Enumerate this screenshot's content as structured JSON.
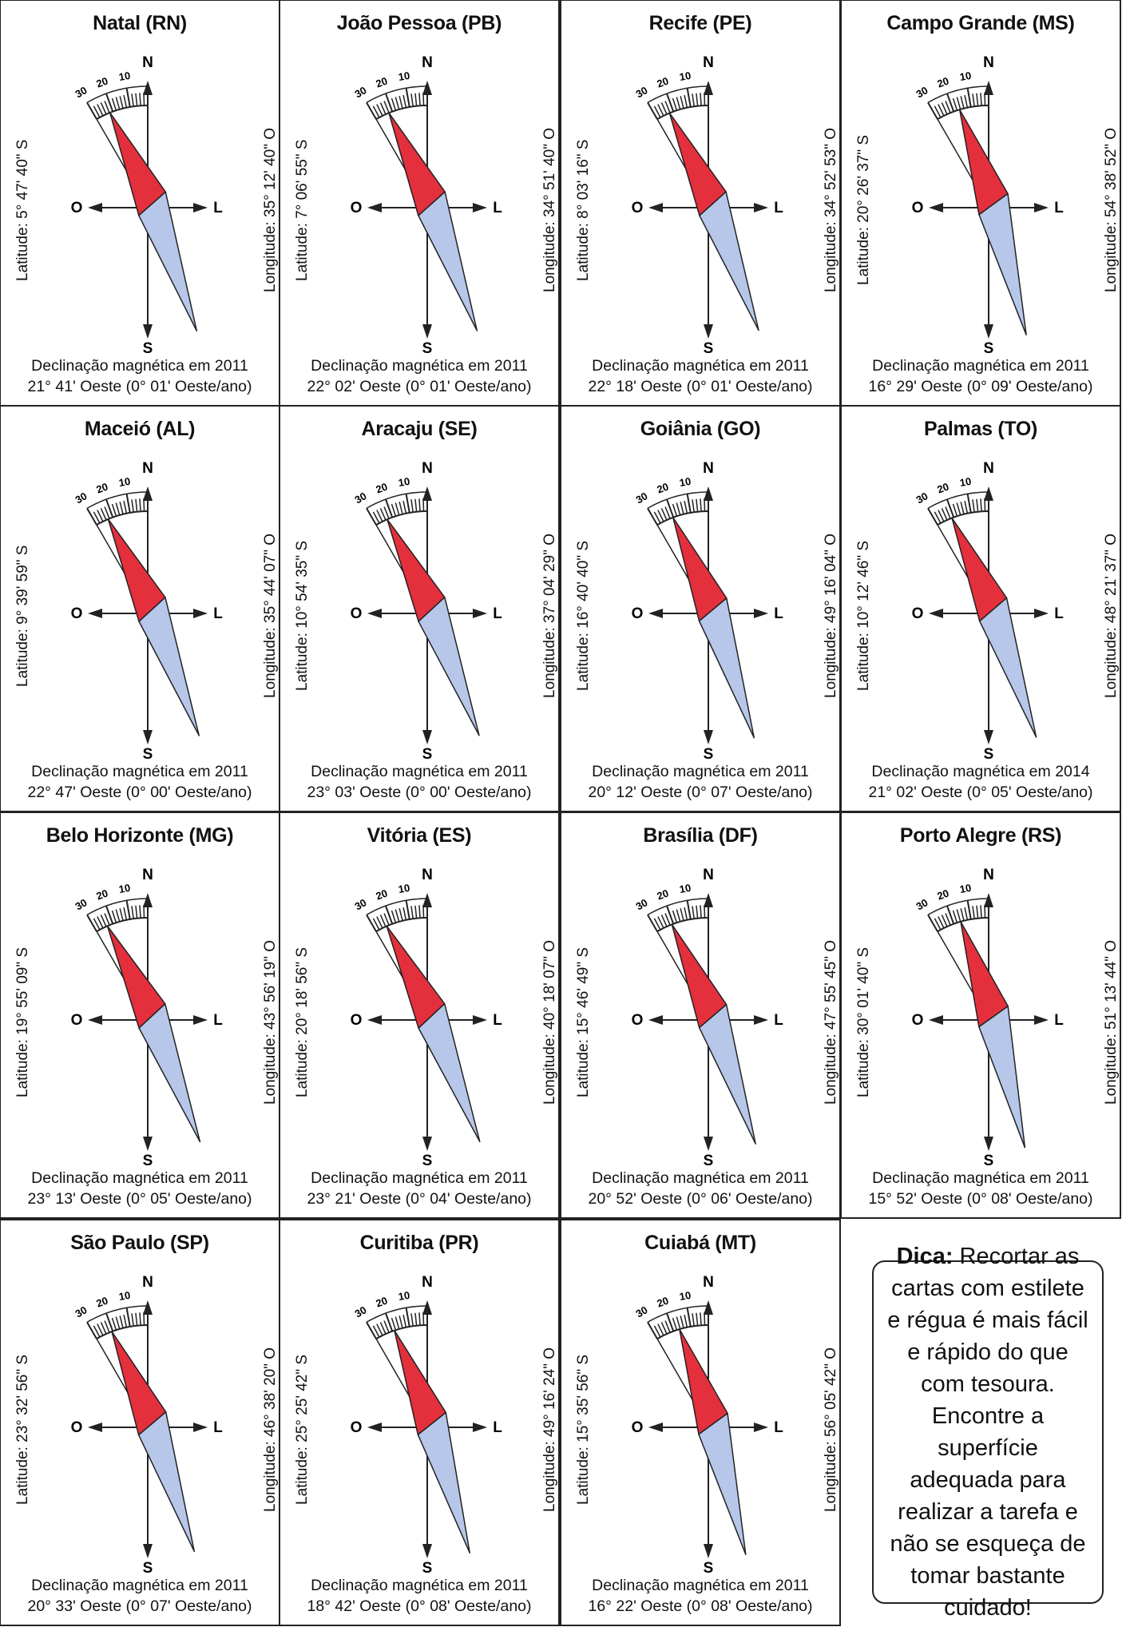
{
  "labels": {
    "north": "N",
    "south": "S",
    "east": "L",
    "west": "O",
    "scale": [
      "30",
      "20",
      "10"
    ]
  },
  "colors": {
    "north_needle": "#e4303d",
    "south_needle": "#b7c7ea",
    "line": "#222222"
  },
  "cards": [
    {
      "title": "Natal (RN)",
      "latitude": "Latitude: 5° 47' 40\" S",
      "longitude": "Longitude: 35° 12' 40\" O",
      "decl_line1": "Declinação magnética em 2011",
      "decl_line2": "21° 41' Oeste (0° 01' Oeste/ano)",
      "declination_deg": 21.68
    },
    {
      "title": "João Pessoa (PB)",
      "latitude": "Latitude: 7° 06' 55\" S",
      "longitude": "Longitude: 34° 51' 40\" O",
      "decl_line1": "Declinação magnética em 2011",
      "decl_line2": "22° 02' Oeste (0° 01' Oeste/ano)",
      "declination_deg": 22.03
    },
    {
      "title": "Recife (PE)",
      "latitude": "Latitude: 8° 03' 16\" S",
      "longitude": "Longitude: 34° 52' 53\" O",
      "decl_line1": "Declinação magnética em 2011",
      "decl_line2": "22° 18' Oeste (0° 01' Oeste/ano)",
      "declination_deg": 22.3
    },
    {
      "title": "Campo Grande (MS)",
      "latitude": "Latitude: 20° 26' 37\" S",
      "longitude": "Longitude: 54° 38' 52\" O",
      "decl_line1": "Declinação magnética em 2011",
      "decl_line2": "16° 29' Oeste (0° 09' Oeste/ano)",
      "declination_deg": 16.48
    },
    {
      "title": "Maceió (AL)",
      "latitude": "Latitude: 9° 39' 59\" S",
      "longitude": "Longitude: 35° 44' 07\" O",
      "decl_line1": "Declinação magnética em 2011",
      "decl_line2": "22° 47' Oeste (0° 00' Oeste/ano)",
      "declination_deg": 22.78
    },
    {
      "title": "Aracaju (SE)",
      "latitude": "Latitude: 10° 54' 35\" S",
      "longitude": "Longitude: 37° 04' 29\" O",
      "decl_line1": "Declinação magnética em 2011",
      "decl_line2": "23° 03' Oeste (0° 00' Oeste/ano)",
      "declination_deg": 23.05
    },
    {
      "title": "Goiânia (GO)",
      "latitude": "Latitude: 16° 40' 40\" S",
      "longitude": "Longitude: 49° 16' 04\" O",
      "decl_line1": "Declinação magnética em 2011",
      "decl_line2": "20° 12' Oeste (0° 07' Oeste/ano)",
      "declination_deg": 20.2
    },
    {
      "title": "Palmas (TO)",
      "latitude": "Latitude: 10° 12' 46\" S",
      "longitude": "Longitude: 48° 21' 37\" O",
      "decl_line1": "Declinação magnética em 2014",
      "decl_line2": "21° 02' Oeste (0° 05' Oeste/ano)",
      "declination_deg": 21.03
    },
    {
      "title": "Belo Horizonte (MG)",
      "latitude": "Latitude: 19° 55' 09\" S",
      "longitude": "Longitude: 43° 56' 19\" O",
      "decl_line1": "Declinação magnética em 2011",
      "decl_line2": "23° 13' Oeste (0° 05' Oeste/ano)",
      "declination_deg": 23.22
    },
    {
      "title": "Vitória (ES)",
      "latitude": "Latitude: 20° 18' 56\" S",
      "longitude": "Longitude: 40° 18' 07\" O",
      "decl_line1": "Declinação magnética em 2011",
      "decl_line2": "23° 21' Oeste (0° 04' Oeste/ano)",
      "declination_deg": 23.35
    },
    {
      "title": "Brasília (DF)",
      "latitude": "Latitude: 15° 46' 49\" S",
      "longitude": "Longitude: 47° 55' 45\" O",
      "decl_line1": "Declinação magnética em 2011",
      "decl_line2": "20° 52' Oeste (0° 06' Oeste/ano)",
      "declination_deg": 20.87
    },
    {
      "title": "Porto Alegre (RS)",
      "latitude": "Latitude: 30° 01' 40\" S",
      "longitude": "Longitude: 51° 13' 44\" O",
      "decl_line1": "Declinação magnética em 2011",
      "decl_line2": "15° 52' Oeste (0° 08' Oeste/ano)",
      "declination_deg": 15.87
    },
    {
      "title": "São Paulo (SP)",
      "latitude": "Latitude: 23° 32' 56\" S",
      "longitude": "Longitude: 46° 38' 20\" O",
      "decl_line1": "Declinação magnética em 2011",
      "decl_line2": "20° 33' Oeste (0° 07' Oeste/ano)",
      "declination_deg": 20.55
    },
    {
      "title": "Curitiba (PR)",
      "latitude": "Latitude: 25° 25' 42\" S",
      "longitude": "Longitude: 49° 16' 24\" O",
      "decl_line1": "Declinação magnética em 2011",
      "decl_line2": "18° 42' Oeste (0° 08' Oeste/ano)",
      "declination_deg": 18.7
    },
    {
      "title": "Cuiabá (MT)",
      "latitude": "Latitude: 15° 35' 56\" S",
      "longitude": "Longitude: 56° 05' 42\" O",
      "decl_line1": "Declinação magnética em 2011",
      "decl_line2": "16° 22' Oeste (0° 08' Oeste/ano)",
      "declination_deg": 16.37
    }
  ],
  "tip": {
    "label": "Dica:",
    "text": "Recortar as cartas com estilete e régua é mais fácil e rápido do que com tesoura. Encontre a superfície adequada para realizar a tarefa e não se esqueça de tomar bastante cuidado!"
  }
}
